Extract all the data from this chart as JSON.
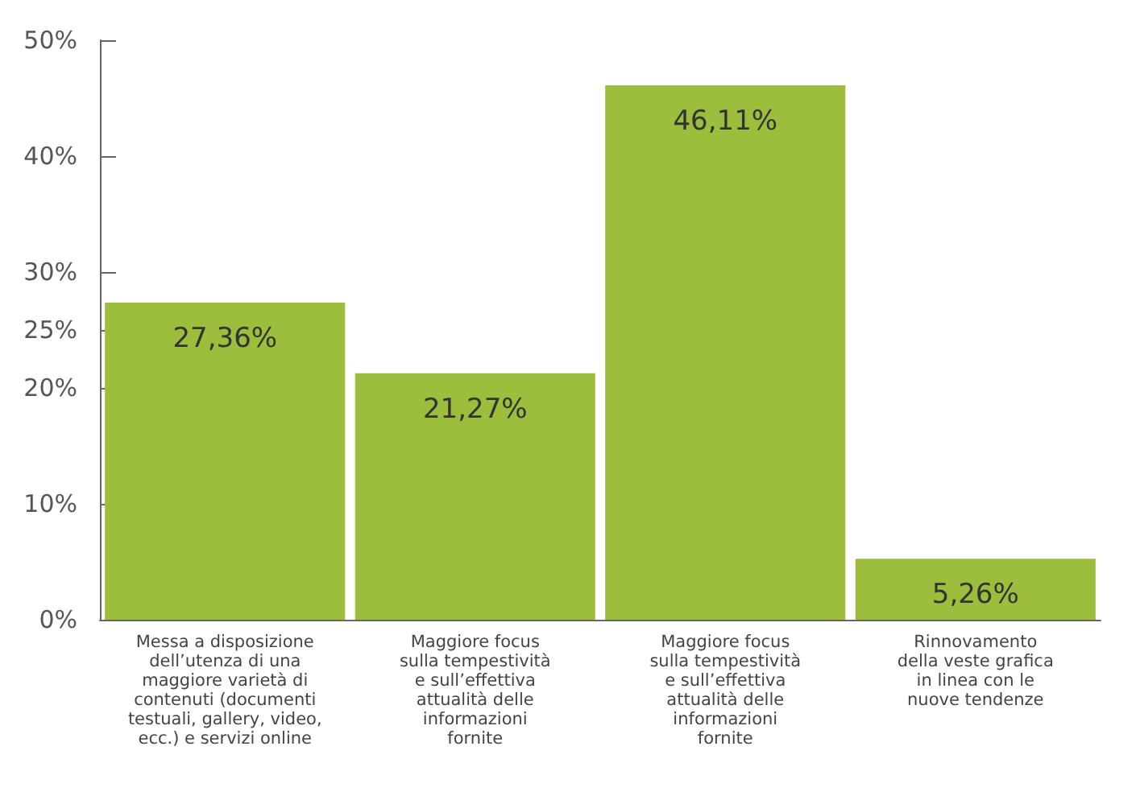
{
  "chart_data": {
    "type": "bar",
    "categories": [
      "Messa a disposizione\ndell’utenza di una\nmaggiore varietà di\ncontenuti (documenti\ntestuali, gallery, video,\necc.) e servizi online",
      "Maggiore focus\nsulla tempestività\ne sull’effettiva\nattualità delle\ninformazioni\nfornite",
      "Maggiore focus\nsulla tempestività\ne sull’effettiva\nattualità delle\ninformazioni\nfornite",
      "Rinnovamento\ndella veste grafica\nin linea con le\nnuove tendenze"
    ],
    "values": [
      27.36,
      21.27,
      46.11,
      5.26
    ],
    "value_labels": [
      "27,36%",
      "21,27%",
      "46,11%",
      "5,26%"
    ],
    "color": "#9dbd3c",
    "ylim": [
      0,
      50
    ],
    "yticks": [
      {
        "value": 0,
        "label": "0%"
      },
      {
        "value": 10,
        "label": "10%"
      },
      {
        "value": 20,
        "label": "20%"
      },
      {
        "value": 25,
        "label": "25%"
      },
      {
        "value": 30,
        "label": "30%"
      },
      {
        "value": 40,
        "label": "40%"
      },
      {
        "value": 50,
        "label": "50%"
      }
    ],
    "grid": false
  }
}
